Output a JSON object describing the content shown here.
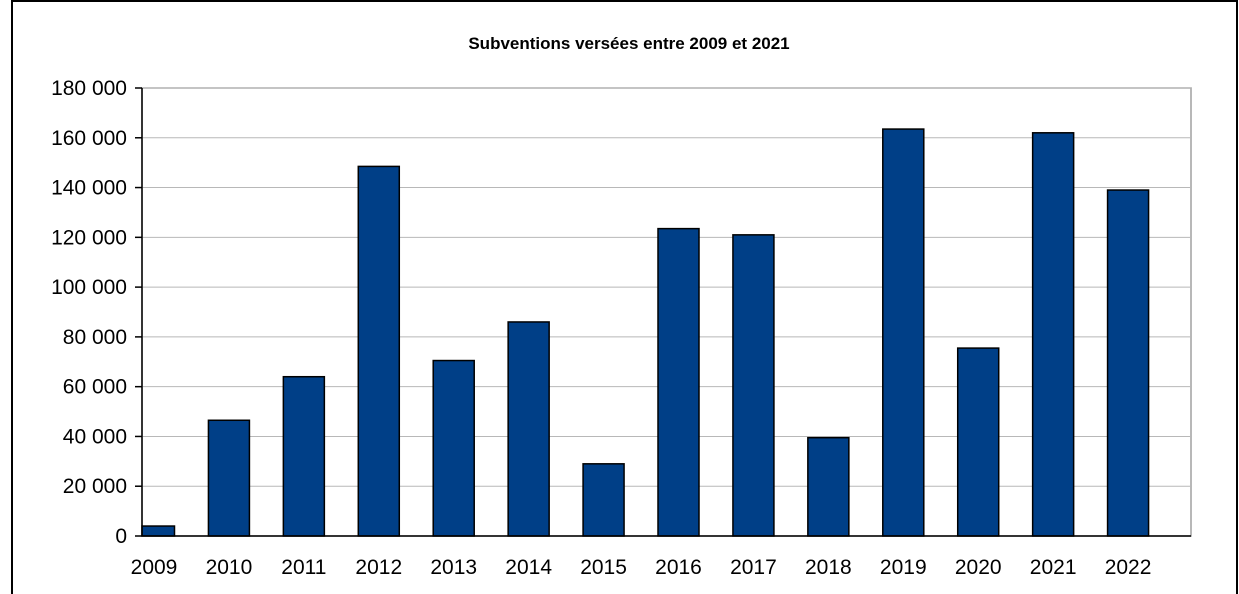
{
  "chart_data": {
    "type": "bar",
    "title": "Subventions versées entre 2009 et 2021",
    "xlabel": "",
    "ylabel": "",
    "categories": [
      "2009",
      "2010",
      "2011",
      "2012",
      "2013",
      "2014",
      "2015",
      "2016",
      "2017",
      "2018",
      "2019",
      "2020",
      "2021",
      "2022"
    ],
    "values": [
      4000,
      46500,
      64000,
      148500,
      70500,
      86000,
      29000,
      123500,
      121000,
      39500,
      163500,
      75500,
      162000,
      139000
    ],
    "ylim": [
      0,
      180000
    ],
    "yticks": [
      0,
      20000,
      40000,
      60000,
      80000,
      100000,
      120000,
      140000,
      160000,
      180000
    ],
    "ytick_labels": [
      "0",
      "20 000",
      "40 000",
      "60 000",
      "80 000",
      "100 000",
      "120 000",
      "140 000",
      "160 000",
      "180 000"
    ],
    "grid": true,
    "bar_color": "#003f87"
  }
}
